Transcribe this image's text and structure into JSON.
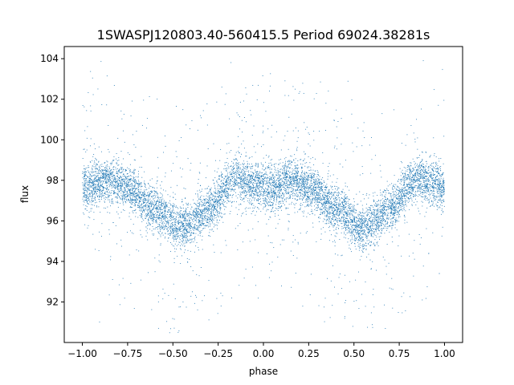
{
  "chart_data": {
    "type": "scatter",
    "title": "1SWASPJ120803.40-560415.5 Period 69024.38281s",
    "xlabel": "phase",
    "ylabel": "flux",
    "xlim": [
      -1.1,
      1.1
    ],
    "ylim": [
      90.0,
      104.6
    ],
    "xticks": [
      -1.0,
      -0.75,
      -0.5,
      -0.25,
      0.0,
      0.25,
      0.5,
      0.75,
      1.0
    ],
    "xtick_labels": [
      "−1.00",
      "−0.75",
      "−0.50",
      "−0.25",
      "0.00",
      "0.25",
      "0.50",
      "0.75",
      "1.00"
    ],
    "yticks": [
      92,
      94,
      96,
      98,
      100,
      102,
      104
    ],
    "ytick_labels": [
      "92",
      "94",
      "96",
      "98",
      "100",
      "102",
      "104"
    ],
    "grid": false,
    "marker_color": "#1f77b4",
    "series": [
      {
        "points_x_range": [
          -1.0,
          1.0
        ],
        "light_curve_profile": {
          "phase": [
            -1.0,
            -0.85,
            -0.75,
            -0.6,
            -0.45,
            -0.3,
            -0.15,
            -0.05,
            0.05,
            0.15,
            0.25,
            0.4,
            0.55,
            0.7,
            0.85,
            0.95,
            1.0
          ],
          "flux": [
            97.6,
            98.0,
            97.6,
            96.6,
            95.6,
            96.6,
            98.1,
            97.8,
            97.6,
            98.0,
            97.6,
            96.6,
            95.6,
            96.6,
            98.1,
            97.8,
            97.6
          ]
        },
        "scatter_sigma": 0.55,
        "point_count": 9000
      }
    ]
  }
}
